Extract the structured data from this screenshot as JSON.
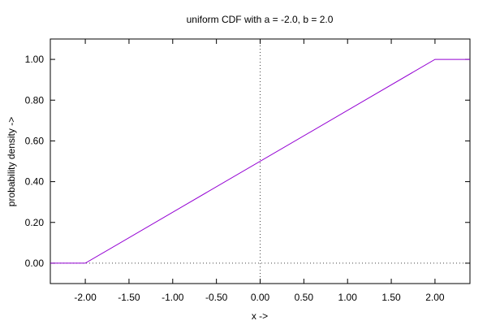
{
  "chart_data": {
    "type": "line",
    "title": "uniform CDF with a = -2.0, b = 2.0",
    "xlabel": "x ->",
    "ylabel": "probability density ->",
    "xlim": [
      -2.4,
      2.4
    ],
    "ylim": [
      -0.1,
      1.1
    ],
    "x_ticks": [
      -2.0,
      -1.5,
      -1.0,
      -0.5,
      0.0,
      0.5,
      1.0,
      1.5,
      2.0
    ],
    "x_tick_labels": [
      "-2.00",
      "-1.50",
      "-1.00",
      "-0.50",
      "0.00",
      "0.50",
      "1.00",
      "1.50",
      "2.00"
    ],
    "y_ticks": [
      0.0,
      0.2,
      0.4,
      0.6,
      0.8,
      1.0
    ],
    "y_tick_labels": [
      "0.00",
      "0.20",
      "0.40",
      "0.60",
      "0.80",
      "1.00"
    ],
    "grid": false,
    "zero_axes": "dotted",
    "series": [
      {
        "color": "#9400d3",
        "x": [
          -2.4,
          -2.0,
          2.0,
          2.4
        ],
        "y": [
          0.0,
          0.0,
          1.0,
          1.0
        ]
      }
    ]
  }
}
